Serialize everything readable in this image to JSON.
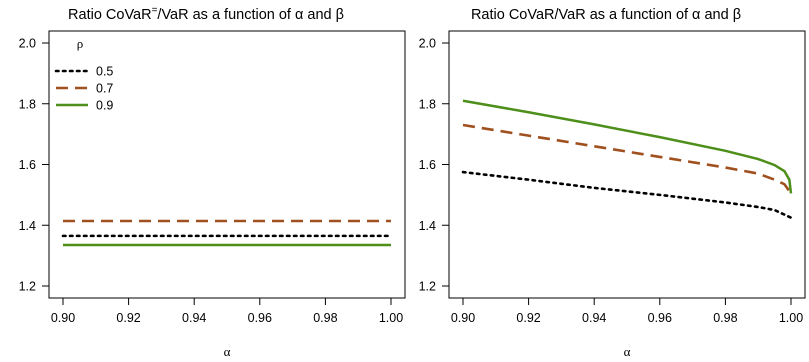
{
  "chart_data": [
    {
      "type": "line",
      "title_pre": "Ratio CoVaR",
      "title_sup": "=",
      "title_post": "/VaR as a function of α and β",
      "xlabel": "α",
      "ylabel": "",
      "xlim": [
        0.9,
        1.0
      ],
      "ylim": [
        1.2,
        2.0
      ],
      "xticks": [
        "0.90",
        "0.92",
        "0.94",
        "0.96",
        "0.98",
        "1.00"
      ],
      "yticks": [
        "1.2",
        "1.4",
        "1.6",
        "1.8",
        "2.0"
      ],
      "legend_title": "ρ",
      "legend_position": "top-left",
      "series": [
        {
          "name": "0.5",
          "color": "#000000",
          "style": "dotted",
          "x": [
            0.9,
            1.0
          ],
          "y": [
            1.365,
            1.365
          ]
        },
        {
          "name": "0.7",
          "color": "#a0501e",
          "style": "dashed",
          "x": [
            0.9,
            1.0
          ],
          "y": [
            1.414,
            1.414
          ]
        },
        {
          "name": "0.9",
          "color": "#4d8f1a",
          "style": "solid",
          "x": [
            0.9,
            1.0
          ],
          "y": [
            1.335,
            1.335
          ]
        }
      ]
    },
    {
      "type": "line",
      "title_pre": "Ratio CoVaR",
      "title_sup": "",
      "title_post": "/VaR as a function of α and β",
      "xlabel": "α",
      "ylabel": "",
      "xlim": [
        0.9,
        1.0
      ],
      "ylim": [
        1.2,
        2.0
      ],
      "xticks": [
        "0.90",
        "0.92",
        "0.94",
        "0.96",
        "0.98",
        "1.00"
      ],
      "yticks": [
        "1.2",
        "1.4",
        "1.6",
        "1.8",
        "2.0"
      ],
      "legend_title": "ρ",
      "legend_position": "top-right",
      "series": [
        {
          "name": "0.5",
          "color": "#000000",
          "style": "dotted",
          "x": [
            0.9,
            0.92,
            0.94,
            0.96,
            0.98,
            0.99,
            0.995,
            1.0
          ],
          "y": [
            1.575,
            1.55,
            1.523,
            1.5,
            1.475,
            1.46,
            1.45,
            1.425
          ]
        },
        {
          "name": "0.7",
          "color": "#a0501e",
          "style": "dashed",
          "x": [
            0.9,
            0.92,
            0.94,
            0.96,
            0.98,
            0.99,
            0.995,
            0.998,
            1.0
          ],
          "y": [
            1.73,
            1.695,
            1.66,
            1.625,
            1.59,
            1.57,
            1.55,
            1.535,
            1.505
          ]
        },
        {
          "name": "0.9",
          "color": "#4d8f1a",
          "style": "solid",
          "x": [
            0.9,
            0.92,
            0.94,
            0.96,
            0.98,
            0.99,
            0.995,
            0.998,
            0.9995,
            1.0
          ],
          "y": [
            1.81,
            1.772,
            1.732,
            1.69,
            1.645,
            1.618,
            1.598,
            1.578,
            1.55,
            1.505
          ]
        }
      ]
    }
  ]
}
